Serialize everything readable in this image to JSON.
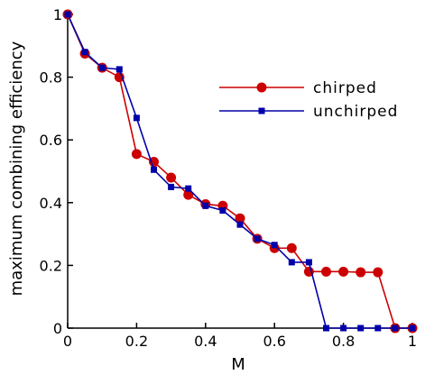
{
  "chart_data": {
    "type": "line",
    "xlabel": "M",
    "ylabel": "maximum combining efficiency",
    "xlim": [
      0,
      1
    ],
    "ylim": [
      0,
      1
    ],
    "xticks": [
      0,
      0.2,
      0.4,
      0.6,
      0.8,
      1
    ],
    "yticks": [
      0,
      0.2,
      0.4,
      0.6,
      0.8,
      1
    ],
    "xtick_labels": [
      "0",
      "0.2",
      "0.4",
      "0.6",
      "0.8",
      "1"
    ],
    "ytick_labels": [
      "0",
      "0.2",
      "0.4",
      "0.6",
      "0.8",
      "1"
    ],
    "grid": false,
    "legend_position": "right",
    "series": [
      {
        "name": "chirped",
        "color": "#cc0000",
        "marker": "circle",
        "x": [
          0,
          0.05,
          0.1,
          0.15,
          0.2,
          0.25,
          0.3,
          0.35,
          0.4,
          0.45,
          0.5,
          0.55,
          0.6,
          0.65,
          0.7,
          0.75,
          0.8,
          0.85,
          0.9,
          0.95,
          1.0
        ],
        "y": [
          1.0,
          0.875,
          0.83,
          0.8,
          0.555,
          0.53,
          0.48,
          0.425,
          0.395,
          0.39,
          0.35,
          0.285,
          0.255,
          0.255,
          0.18,
          0.18,
          0.18,
          0.178,
          0.178,
          0.0,
          0.0
        ]
      },
      {
        "name": "unchirped",
        "color": "#0000aa",
        "marker": "square",
        "x": [
          0,
          0.05,
          0.1,
          0.15,
          0.2,
          0.25,
          0.3,
          0.35,
          0.4,
          0.45,
          0.5,
          0.55,
          0.6,
          0.65,
          0.7,
          0.75,
          0.8,
          0.85,
          0.9,
          0.95,
          1.0
        ],
        "y": [
          1.0,
          0.88,
          0.83,
          0.825,
          0.67,
          0.505,
          0.45,
          0.445,
          0.39,
          0.375,
          0.33,
          0.285,
          0.265,
          0.21,
          0.21,
          0.0,
          0.0,
          0.0,
          0.0,
          0.0,
          0.0
        ]
      }
    ]
  }
}
